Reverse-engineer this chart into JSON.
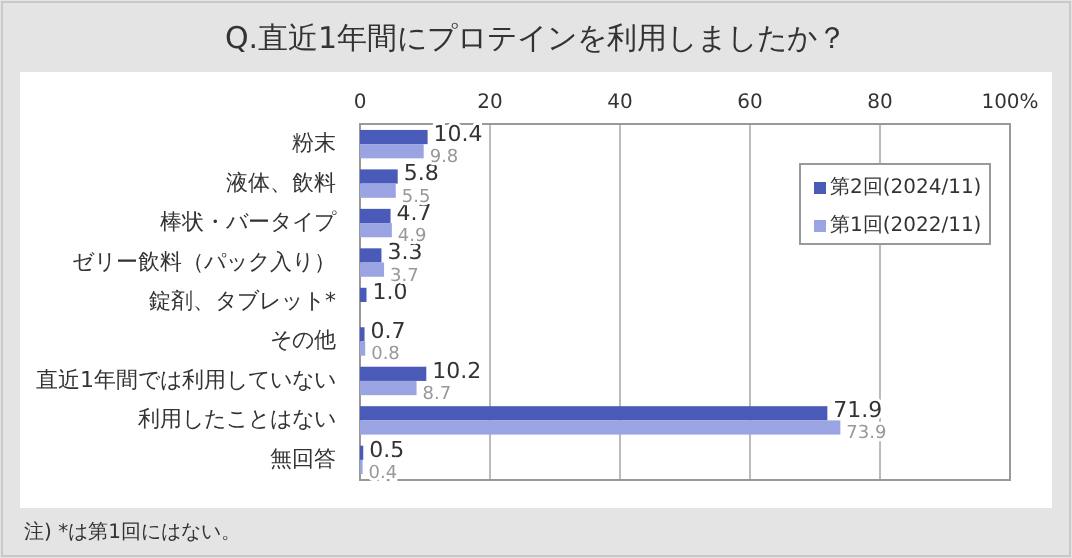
{
  "chart_data": {
    "type": "bar",
    "orientation": "horizontal",
    "title": "Q.直近1年間にプロテインを利用しましたか？",
    "categories": [
      "粉末",
      "液体、飲料",
      "棒状・バータイプ",
      "ゼリー飲料（パック入り）",
      "錠剤、タブレット*",
      "その他",
      "直近1年間では利用していない",
      "利用したことはない",
      "無回答"
    ],
    "series": [
      {
        "name": "第2回(2024/11)",
        "color": "#4a5ab8",
        "values": [
          10.4,
          5.8,
          4.7,
          3.3,
          1.0,
          0.7,
          10.2,
          71.9,
          0.5
        ],
        "value_labels": [
          "10.4",
          "5.8",
          "4.7",
          "3.3",
          "1.0",
          "0.7",
          "10.2",
          "71.9",
          "0.5"
        ]
      },
      {
        "name": "第1回(2022/11)",
        "color": "#9aa4e2",
        "values": [
          9.8,
          5.5,
          4.9,
          3.7,
          null,
          0.8,
          8.7,
          73.9,
          0.4
        ],
        "value_labels": [
          "9.8",
          "5.5",
          "4.9",
          "3.7",
          null,
          "0.8",
          "8.7",
          "73.9",
          "0.4"
        ]
      }
    ],
    "xlim": [
      0,
      100
    ],
    "xticks": [
      0,
      20,
      40,
      60,
      80,
      {
        "value": 100,
        "label": "100%"
      }
    ],
    "grid": "x",
    "legend": "right",
    "annotations": [
      "注) *は第1回にはない。"
    ]
  }
}
